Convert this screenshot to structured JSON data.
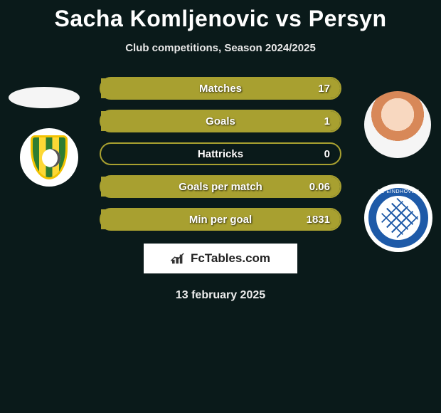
{
  "title": "Sacha Komljenovic vs Persyn",
  "subtitle": "Club competitions, Season 2024/2025",
  "date": "13 february 2025",
  "watermark": "FcTables.com",
  "colors": {
    "background": "#0a1a1a",
    "bar_border": "#a8a030",
    "bar_fill": "#a8a030",
    "text": "#ffffff"
  },
  "player_left": {
    "name": "Sacha Komljenovic",
    "club_badge": "ado-den-haag"
  },
  "player_right": {
    "name": "Persyn",
    "club_badge": "fc-eindhoven"
  },
  "rows": [
    {
      "label": "Matches",
      "left": "",
      "right": "17",
      "fill_left_pct": 0,
      "fill_right_pct": 100
    },
    {
      "label": "Goals",
      "left": "",
      "right": "1",
      "fill_left_pct": 0,
      "fill_right_pct": 100
    },
    {
      "label": "Hattricks",
      "left": "",
      "right": "0",
      "fill_left_pct": 0,
      "fill_right_pct": 0
    },
    {
      "label": "Goals per match",
      "left": "",
      "right": "0.06",
      "fill_left_pct": 0,
      "fill_right_pct": 100
    },
    {
      "label": "Min per goal",
      "left": "",
      "right": "1831",
      "fill_left_pct": 0,
      "fill_right_pct": 100
    }
  ]
}
